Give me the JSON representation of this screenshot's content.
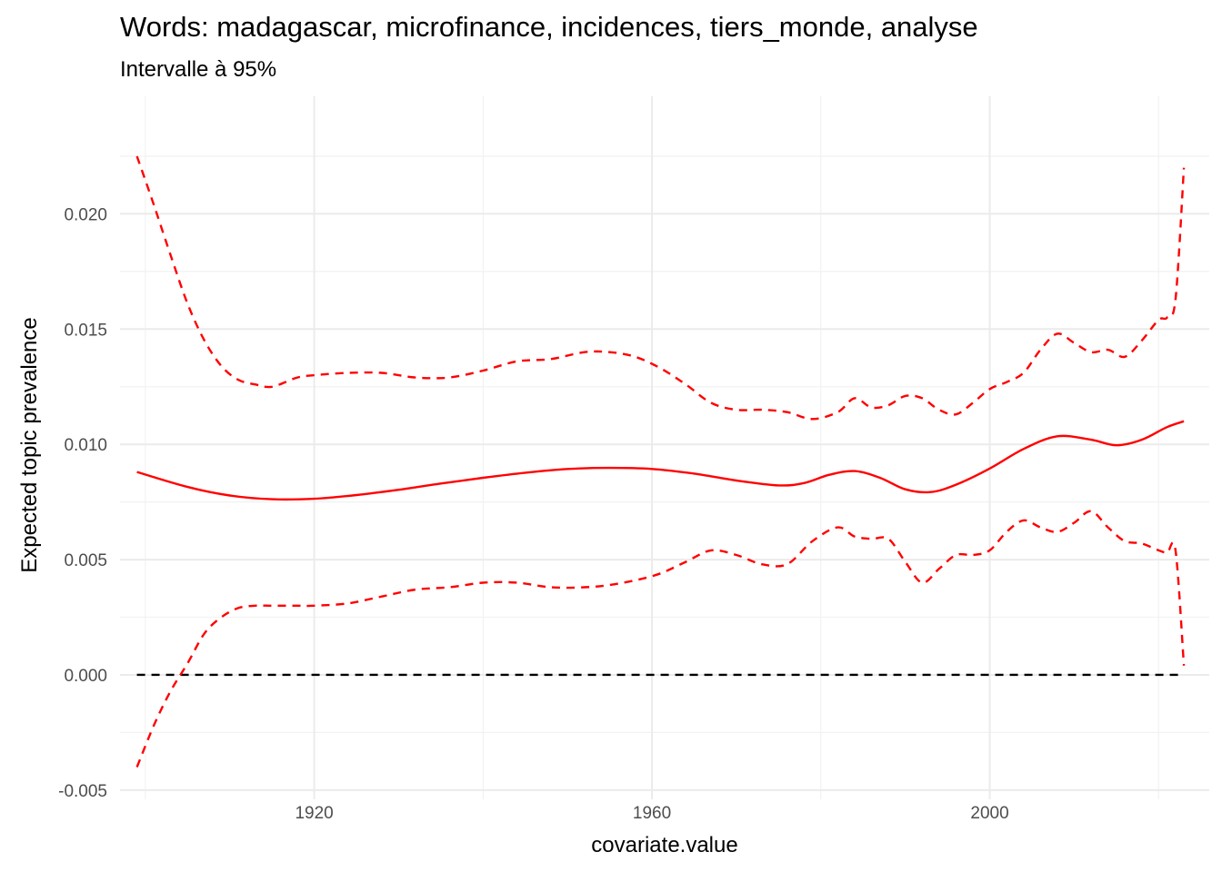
{
  "chart_data": {
    "type": "line",
    "title": "Words: madagascar, microfinance, incidences, tiers_monde, analyse",
    "subtitle": "Intervalle à 95%",
    "xlabel": "covariate.value",
    "ylabel": "Expected topic prevalence",
    "xlim": [
      1897,
      2026
    ],
    "ylim": [
      -0.0054,
      0.0251
    ],
    "x_ticks": [
      1920,
      1960,
      2000
    ],
    "x_tick_labels": [
      "1920",
      "1960",
      "2000"
    ],
    "x_minor_ticks": [
      1900,
      1940,
      1980,
      2020
    ],
    "y_ticks": [
      -0.005,
      0.0,
      0.005,
      0.01,
      0.015,
      0.02
    ],
    "y_tick_labels": [
      "-0.005",
      "0.000",
      "0.005",
      "0.010",
      "0.015",
      "0.020"
    ],
    "y_minor_ticks": [
      -0.0025,
      0.0025,
      0.0075,
      0.0125,
      0.0175,
      0.0225
    ],
    "grid": true,
    "reference_line": {
      "y": 0.0,
      "color": "#000000",
      "style": "dashed"
    },
    "colors": {
      "estimate": "#ff0000",
      "interval": "#ff0000",
      "reference": "#000000"
    },
    "series": [
      {
        "role": "estimate",
        "style": "solid",
        "x": [
          1899,
          1905,
          1910,
          1915,
          1920,
          1925,
          1930,
          1935,
          1940,
          1945,
          1950,
          1955,
          1960,
          1965,
          1970,
          1975,
          1978,
          1981,
          1984,
          1987,
          1990,
          1993,
          1996,
          2000,
          2004,
          2008,
          2012,
          2015,
          2018,
          2021,
          2023
        ],
        "y": [
          0.0088,
          0.00815,
          0.00778,
          0.00762,
          0.00764,
          0.0078,
          0.00803,
          0.0083,
          0.00855,
          0.00877,
          0.00893,
          0.00898,
          0.00893,
          0.00873,
          0.00843,
          0.00822,
          0.00832,
          0.00868,
          0.00884,
          0.00855,
          0.00805,
          0.00793,
          0.00825,
          0.00895,
          0.0098,
          0.01035,
          0.0102,
          0.00996,
          0.0102,
          0.01075,
          0.011
        ]
      },
      {
        "role": "upper-95",
        "style": "dashed",
        "x": [
          1899,
          1901,
          1903,
          1905,
          1907,
          1909,
          1911,
          1913,
          1915,
          1918,
          1920,
          1924,
          1928,
          1932,
          1936,
          1940,
          1944,
          1948,
          1952,
          1955,
          1958,
          1961,
          1964,
          1967,
          1970,
          1973,
          1976,
          1979,
          1982,
          1984,
          1986,
          1988,
          1990,
          1992,
          1994,
          1996,
          1998,
          2000,
          2002,
          2004,
          2006,
          2008,
          2010,
          2012,
          2014,
          2016,
          2018,
          2020,
          2021,
          2022,
          2023
        ],
        "y": [
          0.0225,
          0.0204,
          0.0182,
          0.0161,
          0.0145,
          0.0134,
          0.0128,
          0.0126,
          0.0125,
          0.0129,
          0.013,
          0.0131,
          0.0131,
          0.0129,
          0.0129,
          0.0132,
          0.0136,
          0.0137,
          0.014,
          0.014,
          0.0138,
          0.0133,
          0.0126,
          0.0118,
          0.0115,
          0.0115,
          0.0114,
          0.0111,
          0.0114,
          0.012,
          0.0116,
          0.0117,
          0.0121,
          0.012,
          0.0115,
          0.0113,
          0.0118,
          0.0124,
          0.0127,
          0.0131,
          0.0141,
          0.0148,
          0.0144,
          0.014,
          0.0141,
          0.0138,
          0.0145,
          0.0154,
          0.0155,
          0.0163,
          0.022
        ]
      },
      {
        "role": "lower-95",
        "style": "dashed",
        "x": [
          1899,
          1901,
          1903,
          1905,
          1907,
          1909,
          1911,
          1913,
          1915,
          1918,
          1920,
          1924,
          1928,
          1932,
          1936,
          1940,
          1944,
          1948,
          1952,
          1955,
          1958,
          1961,
          1964,
          1967,
          1970,
          1973,
          1976,
          1979,
          1982,
          1984,
          1986,
          1988,
          1990,
          1992,
          1994,
          1996,
          1998,
          2000,
          2002,
          2004,
          2006,
          2008,
          2010,
          2012,
          2014,
          2016,
          2018,
          2020,
          2021,
          2022,
          2023
        ],
        "y": [
          -0.004,
          -0.0022,
          -0.0007,
          0.0005,
          0.0018,
          0.0025,
          0.0029,
          0.003,
          0.003,
          0.003,
          0.003,
          0.0031,
          0.0034,
          0.0037,
          0.0038,
          0.004,
          0.004,
          0.0038,
          0.0038,
          0.0039,
          0.0041,
          0.0044,
          0.0049,
          0.0054,
          0.0052,
          0.0048,
          0.0048,
          0.0058,
          0.0064,
          0.006,
          0.0059,
          0.0059,
          0.0049,
          0.004,
          0.0046,
          0.0052,
          0.0052,
          0.0054,
          0.0062,
          0.0067,
          0.0064,
          0.0062,
          0.0066,
          0.0071,
          0.0064,
          0.0058,
          0.0057,
          0.0054,
          0.0053,
          0.0054,
          0.0004
        ]
      }
    ]
  }
}
